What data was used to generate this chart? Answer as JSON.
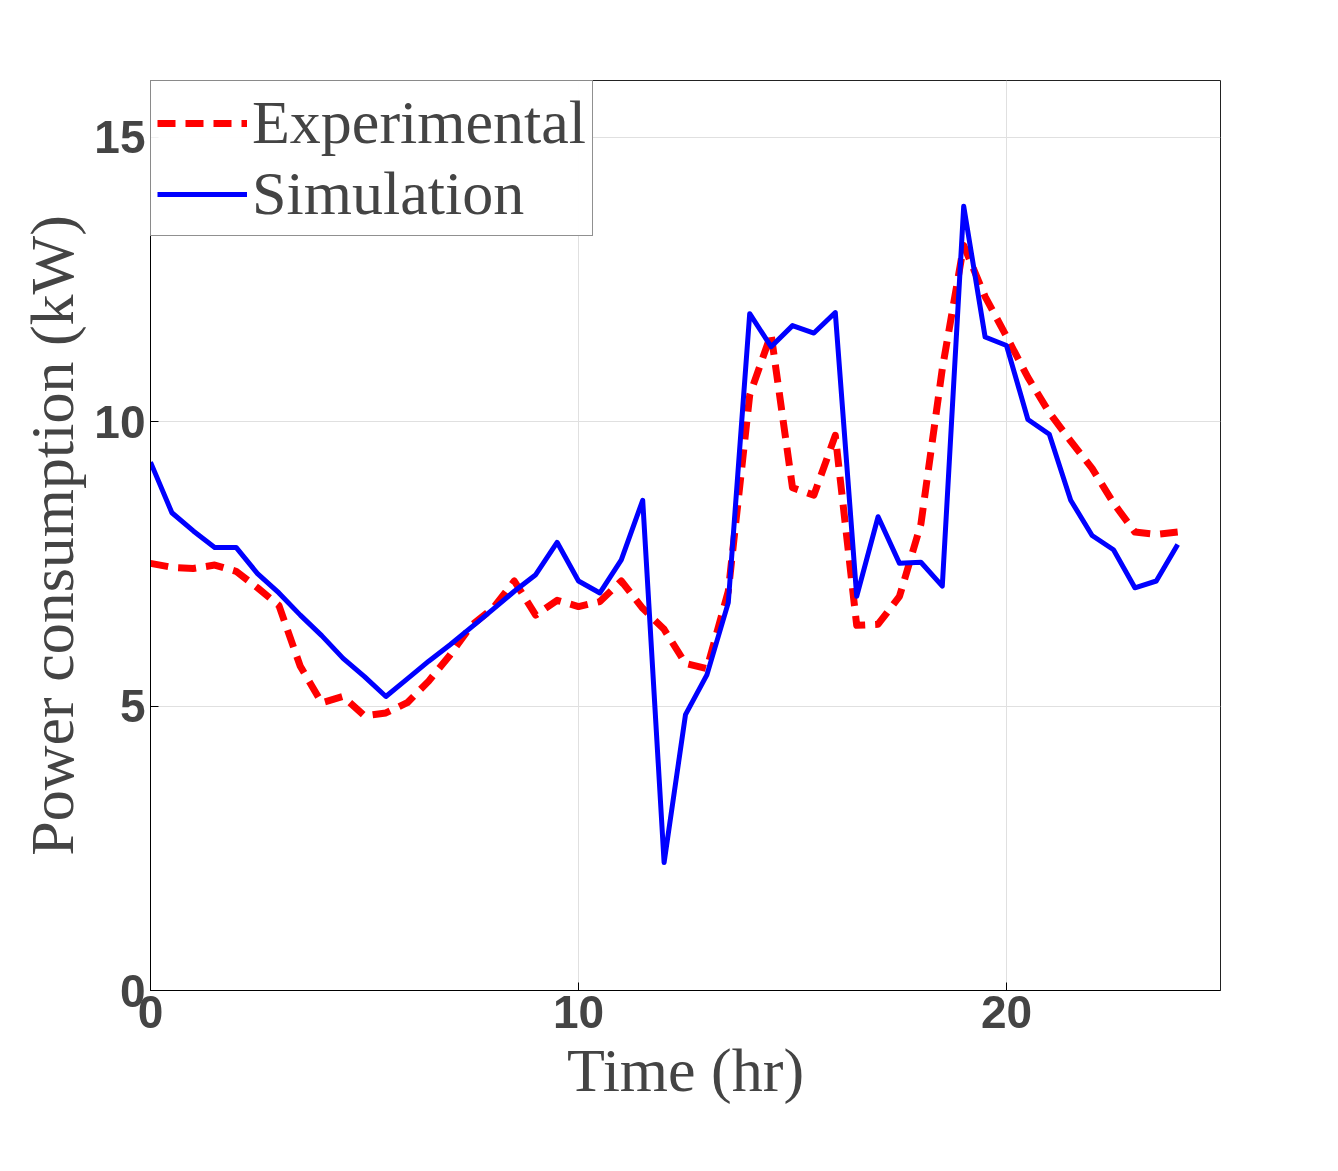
{
  "chart_data": {
    "type": "line",
    "xlabel": "Time (hr)",
    "ylabel": "Power consumption (kW)",
    "x": [
      0,
      0.5,
      1,
      1.5,
      2,
      2.5,
      3,
      3.5,
      4,
      4.5,
      5,
      5.5,
      6,
      6.5,
      7,
      7.5,
      8,
      8.5,
      9,
      9.5,
      10,
      10.5,
      11,
      11.5,
      12,
      12.5,
      13,
      13.5,
      14,
      14.5,
      15,
      15.5,
      16,
      16.5,
      17,
      17.5,
      18,
      18.5,
      19,
      19.5,
      20,
      20.5,
      21,
      21.5,
      22,
      22.5,
      23,
      23.5,
      24
    ],
    "series": [
      {
        "name": "Experimental",
        "color": "#ff0000",
        "line_style": "dashed",
        "values": [
          7.51,
          7.44,
          7.42,
          7.48,
          7.37,
          7.08,
          6.77,
          5.7,
          5.06,
          5.17,
          4.83,
          4.88,
          5.06,
          5.44,
          5.9,
          6.42,
          6.72,
          7.2,
          6.6,
          6.86,
          6.75,
          6.84,
          7.2,
          6.72,
          6.35,
          5.75,
          5.66,
          7.02,
          10.47,
          11.54,
          8.84,
          8.71,
          9.76,
          6.42,
          6.44,
          6.93,
          8.2,
          10.93,
          13.1,
          12.2,
          11.5,
          10.78,
          10.16,
          9.66,
          9.18,
          8.57,
          8.06,
          8.02,
          8.06
        ]
      },
      {
        "name": "Simulation",
        "color": "#0000ff",
        "line_style": "solid",
        "values": [
          9.29,
          8.4,
          8.08,
          7.79,
          7.79,
          7.33,
          6.99,
          6.6,
          6.24,
          5.84,
          5.52,
          5.17,
          5.48,
          5.79,
          6.08,
          6.39,
          6.7,
          7.02,
          7.31,
          7.88,
          7.2,
          6.99,
          7.57,
          8.62,
          2.25,
          4.85,
          5.55,
          6.82,
          11.9,
          11.32,
          11.69,
          11.56,
          11.92,
          6.93,
          8.33,
          7.51,
          7.53,
          7.11,
          13.79,
          11.49,
          11.34,
          10.04,
          9.78,
          8.62,
          8.0,
          7.75,
          7.08,
          7.2,
          7.84
        ]
      }
    ],
    "xlim": [
      0,
      25
    ],
    "ylim": [
      0,
      16
    ],
    "xticks": [
      0,
      10,
      20
    ],
    "yticks": [
      0,
      5,
      10,
      15
    ],
    "grid": true,
    "legend": "top left"
  }
}
